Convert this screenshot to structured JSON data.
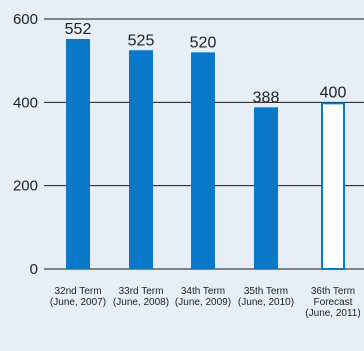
{
  "chart_data": {
    "type": "bar",
    "categories": [
      [
        "32nd Term",
        "(June, 2007)"
      ],
      [
        "33rd Term",
        "(June, 2008)"
      ],
      [
        "34th Term",
        "(June, 2009)"
      ],
      [
        "35th Term",
        "(June, 2010)"
      ],
      [
        "36th Term",
        "Forecast",
        "(June, 2011)"
      ]
    ],
    "values": [
      552,
      525,
      520,
      388,
      400
    ],
    "forecast_index": 4,
    "ylim": [
      0,
      600
    ],
    "yticks": [
      0,
      200,
      400,
      600
    ],
    "grid": true,
    "colors": {
      "background": "#e6eef7",
      "bar": "#0a78c8",
      "forecast_fill": "#ffffff",
      "forecast_stroke": "#0a78c8",
      "grid": "#1a1a1a"
    }
  }
}
